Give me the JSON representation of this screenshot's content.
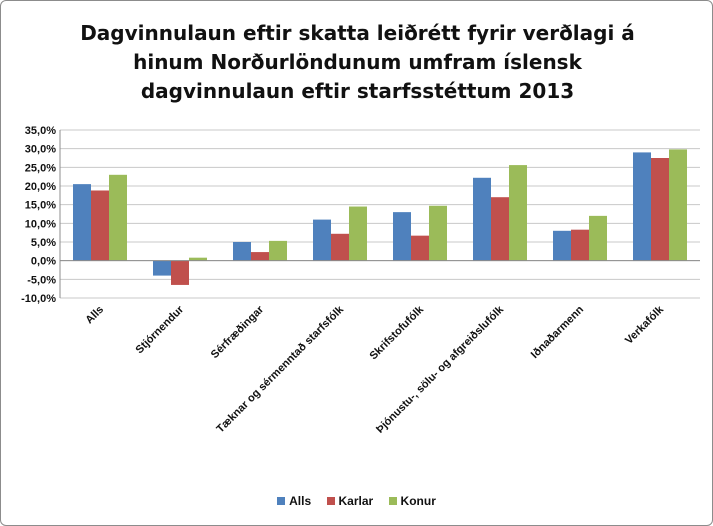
{
  "chart_data": {
    "type": "bar",
    "title_lines": [
      "Dagvinnulaun eftir skatta leiðrétt fyrir verðlagi á",
      "hinum Norðurlöndunum umfram íslensk",
      "dagvinnulaun eftir starfsstéttum 2013"
    ],
    "categories": [
      "Alls",
      "Stjórnendur",
      "Sérfræðingar",
      "Tæknar og sérmenntað starfsfólk",
      "Skrifstofufólk",
      "Þjónustu-, sölu- og afgreiðslufólk",
      "Iðnaðarmenn",
      "Verkafólk"
    ],
    "series": [
      {
        "name": "Alls",
        "color": "#4f81bd",
        "values": [
          20.5,
          -4.0,
          5.0,
          11.0,
          13.0,
          22.2,
          8.0,
          29.0
        ]
      },
      {
        "name": "Karlar",
        "color": "#c0504d",
        "values": [
          18.8,
          -6.5,
          2.3,
          7.2,
          6.7,
          17.0,
          8.3,
          27.5
        ]
      },
      {
        "name": "Konur",
        "color": "#9bbb59",
        "values": [
          23.0,
          0.8,
          5.3,
          14.5,
          14.7,
          25.6,
          12.0,
          29.8
        ]
      }
    ],
    "ylim": [
      -10,
      35
    ],
    "yticks": [
      "-10,0%",
      "-5,0%",
      "0,0%",
      "5,0%",
      "10,0%",
      "15,0%",
      "20,0%",
      "25,0%",
      "30,0%",
      "35,0%"
    ],
    "ytick_values": [
      -10,
      -5,
      0,
      5,
      10,
      15,
      20,
      25,
      30,
      35
    ],
    "grid": true,
    "legend_position": "bottom"
  }
}
